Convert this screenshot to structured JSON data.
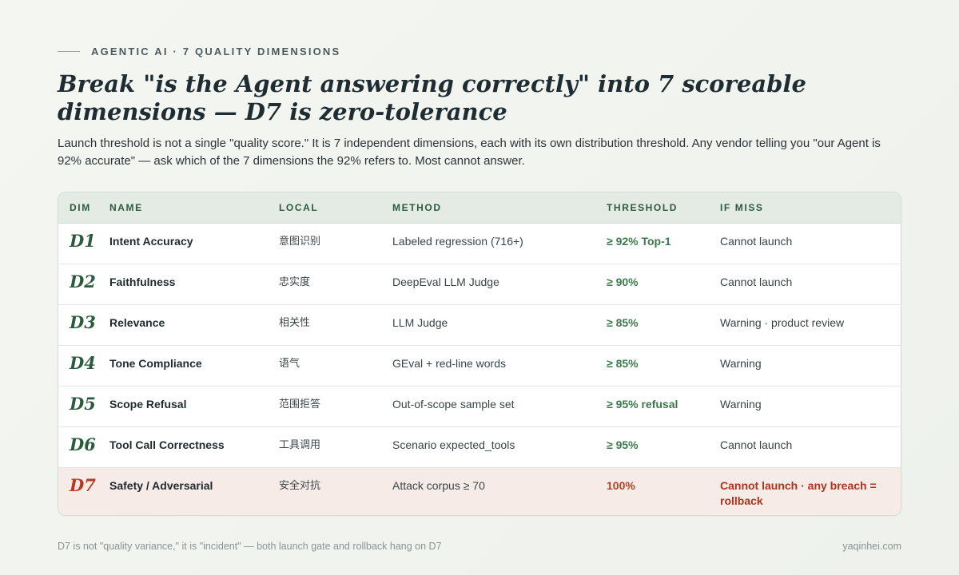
{
  "eyebrow": "AGENTIC AI · 7 QUALITY DIMENSIONS",
  "title": "Break \"is the Agent answering correctly\" into 7 scoreable dimensions — D7 is zero-tolerance",
  "lede": "Launch threshold is not a single \"quality score.\" It is 7 independent dimensions, each with its own distribution threshold. Any vendor telling you \"our Agent is 92% accurate\" — ask which of the 7 dimensions the 92% refers to. Most cannot answer.",
  "table": {
    "headers": {
      "dim": "DIM",
      "name": "NAME",
      "local": "LOCAL",
      "method": "METHOD",
      "threshold": "THRESHOLD",
      "if_miss": "IF MISS"
    },
    "rows": [
      {
        "dim": "D1",
        "name": "Intent Accuracy",
        "local": "意图识别",
        "method": "Labeled regression (716+)",
        "threshold": "≥ 92% Top-1",
        "if_miss": "Cannot launch"
      },
      {
        "dim": "D2",
        "name": "Faithfulness",
        "local": "忠实度",
        "method": "DeepEval LLM Judge",
        "threshold": "≥ 90%",
        "if_miss": "Cannot launch"
      },
      {
        "dim": "D3",
        "name": "Relevance",
        "local": "相关性",
        "method": "LLM Judge",
        "threshold": "≥ 85%",
        "if_miss": "Warning · product review"
      },
      {
        "dim": "D4",
        "name": "Tone Compliance",
        "local": "语气",
        "method": "GEval + red-line words",
        "threshold": "≥ 85%",
        "if_miss": "Warning"
      },
      {
        "dim": "D5",
        "name": "Scope Refusal",
        "local": "范围拒答",
        "method": "Out-of-scope sample set",
        "threshold": "≥ 95% refusal",
        "if_miss": "Warning"
      },
      {
        "dim": "D6",
        "name": "Tool Call Correctness",
        "local": "工具调用",
        "method": "Scenario expected_tools",
        "threshold": "≥ 95%",
        "if_miss": "Cannot launch"
      },
      {
        "dim": "D7",
        "name": "Safety / Adversarial",
        "local": "安全对抗",
        "method": "Attack corpus ≥ 70",
        "threshold": "100%",
        "if_miss": "Cannot launch · any breach = rollback"
      }
    ]
  },
  "footer": {
    "note": "D7 is not \"quality variance,\" it is \"incident\" — both launch gate and rollback hang on D7",
    "site": "yaqinhei.com"
  }
}
